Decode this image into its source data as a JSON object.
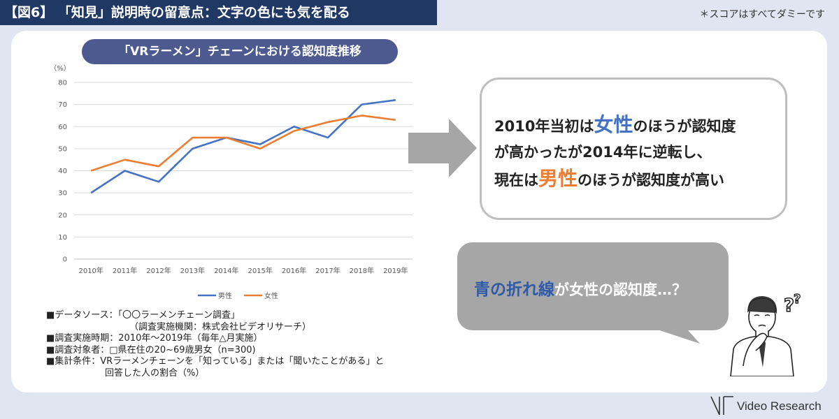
{
  "header": {
    "figure_title": "【図6】 「知見」説明時の留意点：文字の色にも気を配る",
    "dummy_note": "＊スコアはすべてダミーです"
  },
  "chart_data": {
    "type": "line",
    "title": "「VRラーメン」チェーンにおける認知度推移",
    "ylabel": "（%）",
    "categories": [
      "2010年",
      "2011年",
      "2012年",
      "2013年",
      "2014年",
      "2015年",
      "2016年",
      "2017年",
      "2018年",
      "2019年"
    ],
    "ylim": [
      0,
      80
    ],
    "yticks": [
      0,
      10,
      20,
      30,
      40,
      50,
      60,
      70,
      80
    ],
    "grid": true,
    "legend_position": "bottom",
    "series": [
      {
        "name": "男性",
        "color": "#4472c4",
        "values": [
          30,
          40,
          35,
          50,
          55,
          52,
          60,
          55,
          70,
          72
        ]
      },
      {
        "name": "女性",
        "color": "#ed7d31",
        "values": [
          40,
          45,
          42,
          55,
          55,
          50,
          58,
          62,
          65,
          63
        ]
      }
    ]
  },
  "source_notes": [
    "■データソース：「〇〇ラーメンチェーン調査」",
    "（調査実施機関：株式会社ビデオリサーチ）",
    "■調査実施時期：2010年～2019年（毎年△月実施）",
    "■調査対象者：□県在住の20~69歳男女（n=300)",
    "■集計条件：VRラーメンチェーンを「知っている」または「聞いたことがある」と",
    "回答した人の割合（%）"
  ],
  "finding": {
    "line1_pre": "2010年当初は",
    "line1_hl": "女性",
    "line1_post": "のほうが認知度",
    "line2": "が高かったが2014年に逆転し、",
    "line3_pre": "現在は",
    "line3_hl": "男性",
    "line3_post": "のほうが認知度が高い"
  },
  "question": {
    "hl": "青の折れ線",
    "rest": "が女性の認知度…？"
  },
  "logo": {
    "text": "Video Research"
  },
  "colors": {
    "header_bg": "#203864",
    "chart_title_bg": "#4d5a8f",
    "male": "#4472c4",
    "female": "#ed7d31",
    "arrow": "#a6a6a6"
  }
}
